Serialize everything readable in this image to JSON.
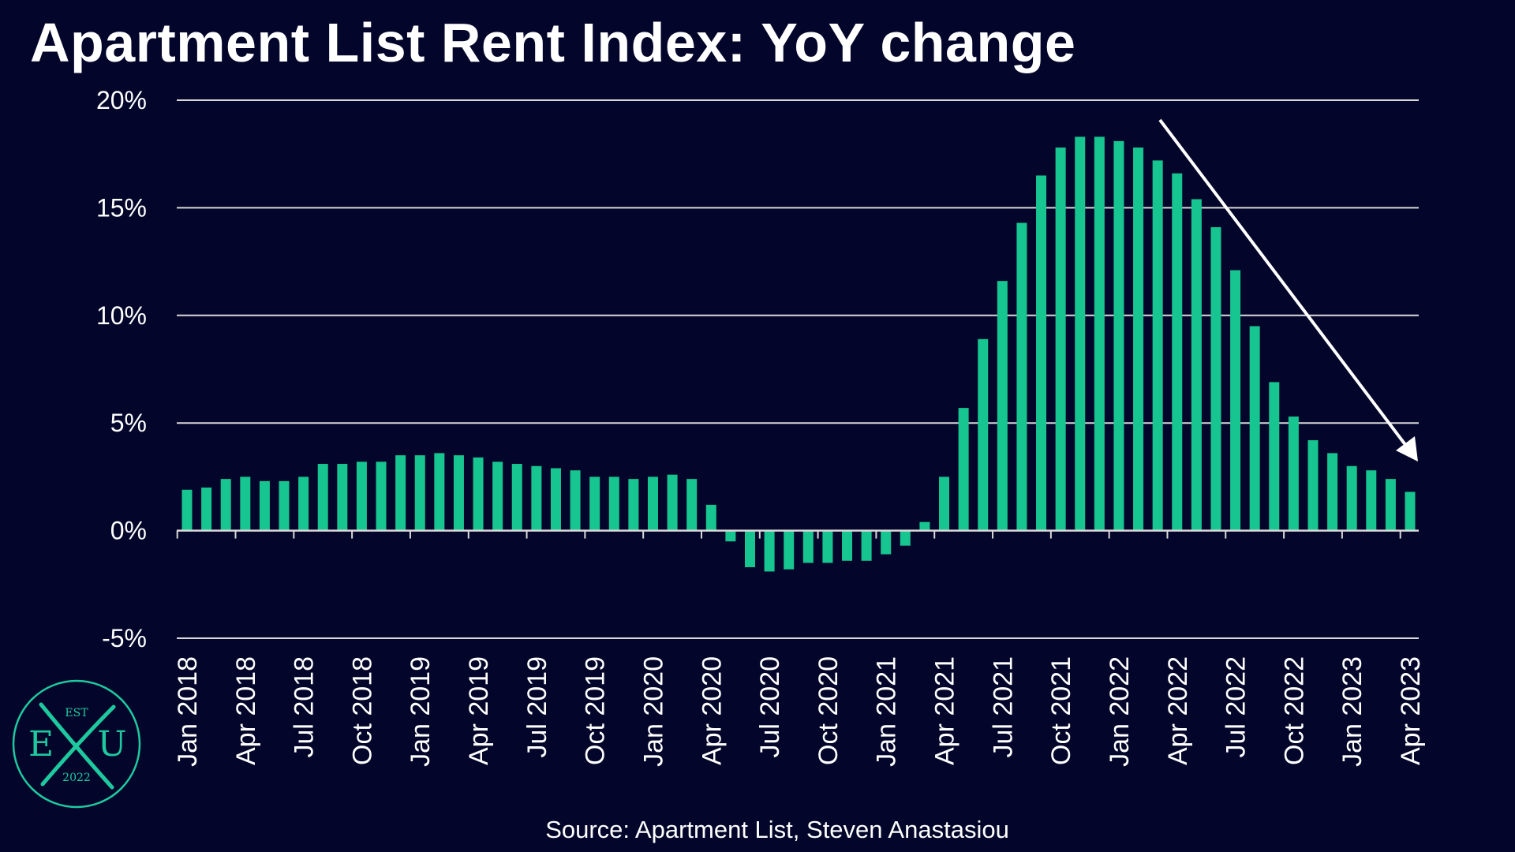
{
  "chart_data": {
    "type": "bar",
    "title": "Apartment List Rent Index: YoY change",
    "source": "Source: Apartment List, Steven Anastasiou",
    "y_ticks": [
      20,
      15,
      10,
      5,
      0,
      -5
    ],
    "y_tick_labels": [
      "20%",
      "15%",
      "10%",
      "5%",
      "0%",
      "-5%"
    ],
    "ylim": [
      -5,
      20
    ],
    "grid": true,
    "categories": [
      "Jan 2018",
      "Feb 2018",
      "Mar 2018",
      "Apr 2018",
      "May 2018",
      "Jun 2018",
      "Jul 2018",
      "Aug 2018",
      "Sep 2018",
      "Oct 2018",
      "Nov 2018",
      "Dec 2018",
      "Jan 2019",
      "Feb 2019",
      "Mar 2019",
      "Apr 2019",
      "May 2019",
      "Jun 2019",
      "Jul 2019",
      "Aug 2019",
      "Sep 2019",
      "Oct 2019",
      "Nov 2019",
      "Dec 2019",
      "Jan 2020",
      "Feb 2020",
      "Mar 2020",
      "Apr 2020",
      "May 2020",
      "Jun 2020",
      "Jul 2020",
      "Aug 2020",
      "Sep 2020",
      "Oct 2020",
      "Nov 2020",
      "Dec 2020",
      "Jan 2021",
      "Feb 2021",
      "Mar 2021",
      "Apr 2021",
      "May 2021",
      "Jun 2021",
      "Jul 2021",
      "Aug 2021",
      "Sep 2021",
      "Oct 2021",
      "Nov 2021",
      "Dec 2021",
      "Jan 2022",
      "Feb 2022",
      "Mar 2022",
      "Apr 2022",
      "May 2022",
      "Jun 2022",
      "Jul 2022",
      "Aug 2022",
      "Sep 2022",
      "Oct 2022",
      "Nov 2022",
      "Dec 2022",
      "Jan 2023",
      "Feb 2023",
      "Mar 2023",
      "Apr 2023"
    ],
    "x_tick_labels": [
      "Jan 2018",
      "Apr 2018",
      "Jul 2018",
      "Oct 2018",
      "Jan 2019",
      "Apr 2019",
      "Jul 2019",
      "Oct 2019",
      "Jan 2020",
      "Apr 2020",
      "Jul 2020",
      "Oct 2020",
      "Jan 2021",
      "Apr 2021",
      "Jul 2021",
      "Oct 2021",
      "Jan 2022",
      "Apr 2022",
      "Jul 2022",
      "Oct 2022",
      "Jan 2023",
      "Apr 2023"
    ],
    "values": [
      1.9,
      2.0,
      2.4,
      2.5,
      2.3,
      2.3,
      2.5,
      3.1,
      3.1,
      3.2,
      3.2,
      3.5,
      3.5,
      3.6,
      3.5,
      3.4,
      3.2,
      3.1,
      3.0,
      2.9,
      2.8,
      2.5,
      2.5,
      2.4,
      2.5,
      2.6,
      2.4,
      1.2,
      -0.5,
      -1.7,
      -1.9,
      -1.8,
      -1.5,
      -1.5,
      -1.4,
      -1.4,
      -1.1,
      -0.7,
      0.4,
      2.5,
      5.7,
      8.9,
      11.6,
      14.3,
      16.5,
      17.8,
      18.3,
      18.3,
      18.1,
      17.8,
      17.2,
      16.6,
      15.4,
      14.1,
      12.1,
      9.5,
      6.9,
      5.3,
      4.2,
      3.6,
      3.0,
      2.8,
      2.4,
      1.8
    ],
    "bar_color": "#17c590",
    "annotation": "arrow indicating downward trend from Mar 2022 toward Apr 2023"
  },
  "colors": {
    "background": "#03062a",
    "text": "#ffffff",
    "gridline": "#d9d9d9",
    "logo_accent": "#1fc9a0"
  },
  "logo": {
    "top": "EST",
    "left": "E",
    "right": "U",
    "bottom": "2022"
  }
}
